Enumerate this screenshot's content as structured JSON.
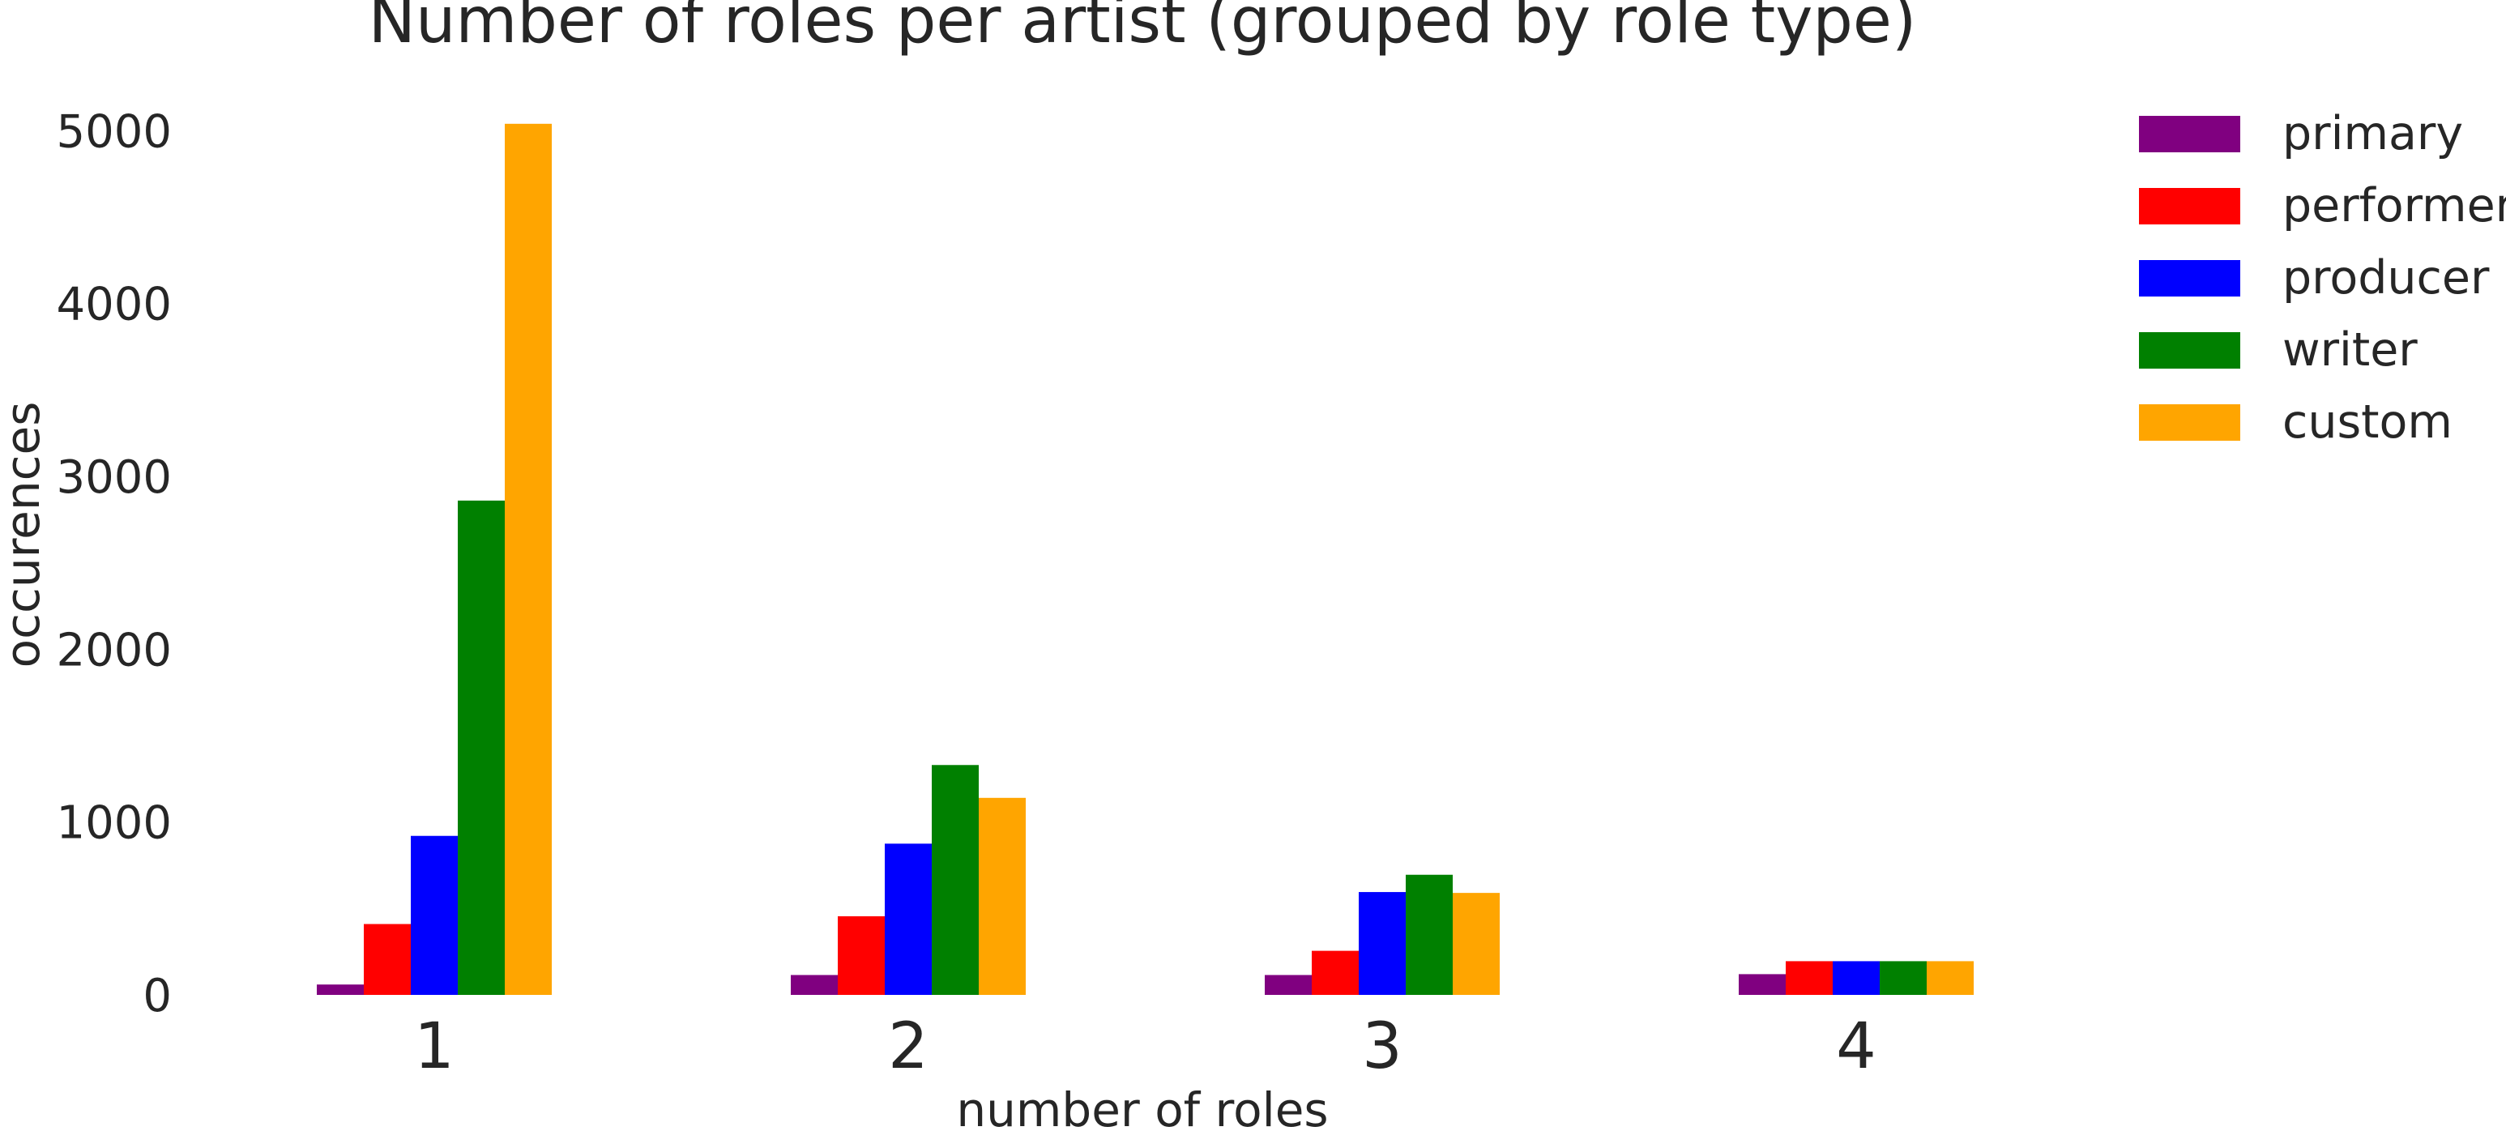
{
  "chart_data": {
    "type": "bar",
    "title": "Number of roles per artist (grouped by role type)",
    "xlabel": "number of roles",
    "ylabel": "occurences",
    "categories": [
      "1",
      "2",
      "3",
      "4"
    ],
    "series": [
      {
        "name": "primary",
        "color": "#800080",
        "values": [
          60,
          115,
          115,
          120
        ]
      },
      {
        "name": "performer",
        "color": "#ff0000",
        "values": [
          410,
          455,
          255,
          195
        ]
      },
      {
        "name": "producer",
        "color": "#0000ff",
        "values": [
          920,
          875,
          595,
          195
        ]
      },
      {
        "name": "writer",
        "color": "#008000",
        "values": [
          2860,
          1330,
          695,
          195
        ]
      },
      {
        "name": "custom",
        "color": "#ffa500",
        "values": [
          5040,
          1140,
          590,
          195
        ]
      }
    ],
    "yticks": [
      "0",
      "1000",
      "2000",
      "3000",
      "4000",
      "5000"
    ],
    "ylim": [
      0,
      5100
    ],
    "grid": false,
    "legend_position": "top-right"
  }
}
